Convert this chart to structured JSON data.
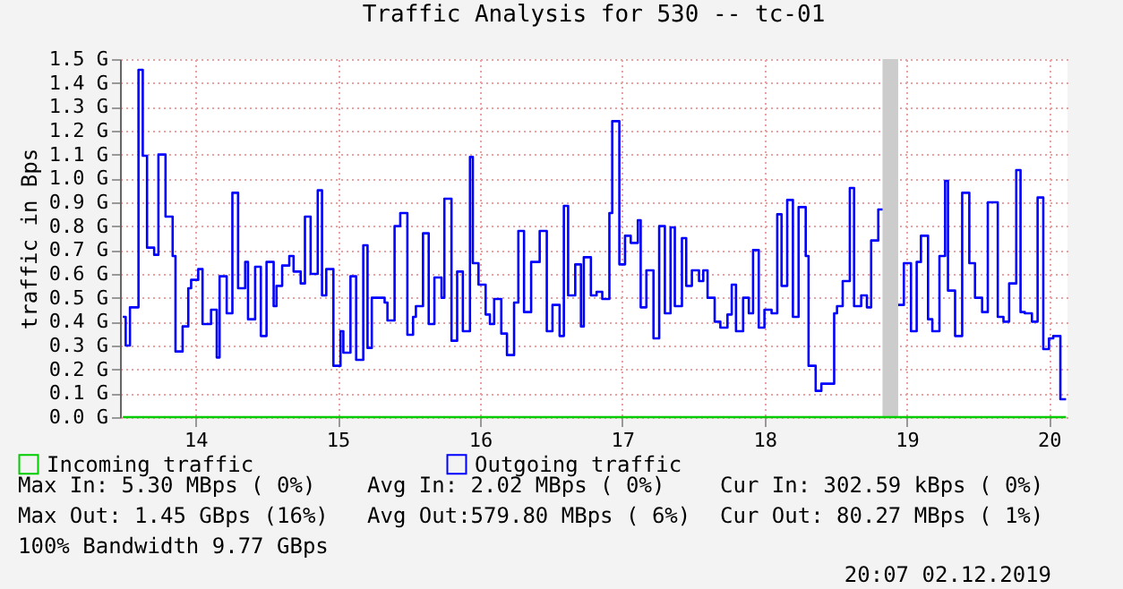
{
  "chart_data": {
    "type": "step",
    "title": "Traffic Analysis for 530 -- tc-01",
    "ylabel": "traffic in Bps",
    "xlim": [
      13.47,
      20.13
    ],
    "xticks": [
      14,
      15,
      16,
      17,
      18,
      19,
      20
    ],
    "ylim": [
      0,
      1.5
    ],
    "yticks": [
      {
        "value": 0,
        "label": "0.0 G"
      },
      {
        "value": 0.1,
        "label": "0.1 G"
      },
      {
        "value": 0.2,
        "label": "0.2 G"
      },
      {
        "value": 0.3,
        "label": "0.3 G"
      },
      {
        "value": 0.4,
        "label": "0.4 G"
      },
      {
        "value": 0.5,
        "label": "0.5 G"
      },
      {
        "value": 0.6,
        "label": "0.6 G"
      },
      {
        "value": 0.7,
        "label": "0.7 G"
      },
      {
        "value": 0.8,
        "label": "0.8 G"
      },
      {
        "value": 0.9,
        "label": "0.9 G"
      },
      {
        "value": 1.0,
        "label": "1.0 G"
      },
      {
        "value": 1.1,
        "label": "1.1 G"
      },
      {
        "value": 1.2,
        "label": "1.2 G"
      },
      {
        "value": 1.3,
        "label": "1.3 G"
      },
      {
        "value": 1.4,
        "label": "1.4 G"
      },
      {
        "value": 1.5,
        "label": "1.5 G"
      }
    ],
    "grid": true,
    "legend": "bottom",
    "line_style": "solid",
    "bands": [
      {
        "axis": "x",
        "from": 18.83,
        "to": 18.94,
        "color": "#cccccc"
      }
    ],
    "series": [
      {
        "name": "Incoming traffic",
        "color": "#00cc00",
        "x": [
          13.49,
          20.12
        ],
        "values": [
          0,
          0
        ]
      },
      {
        "name": "Outgoing traffic",
        "color": "#0000ff",
        "x": [
          13.49,
          13.51,
          13.54,
          13.6,
          13.63,
          13.66,
          13.71,
          13.74,
          13.79,
          13.84,
          13.86,
          13.91,
          13.95,
          13.97,
          14.02,
          14.05,
          14.11,
          14.15,
          14.17,
          14.22,
          14.26,
          14.3,
          14.35,
          14.37,
          14.42,
          14.46,
          14.5,
          14.55,
          14.57,
          14.61,
          14.66,
          14.69,
          14.74,
          14.77,
          14.81,
          14.86,
          14.89,
          14.92,
          14.97,
          15.02,
          15.04,
          15.09,
          15.13,
          15.18,
          15.21,
          15.24,
          15.33,
          15.35,
          15.4,
          15.44,
          15.49,
          15.53,
          15.55,
          15.6,
          15.64,
          15.68,
          15.73,
          15.75,
          15.8,
          15.84,
          15.88,
          15.93,
          15.95,
          15.99,
          16.04,
          16.07,
          16.1,
          16.15,
          16.19,
          16.24,
          16.27,
          16.31,
          16.36,
          16.42,
          16.47,
          16.51,
          16.56,
          16.59,
          16.62,
          16.67,
          16.71,
          16.73,
          16.78,
          16.82,
          16.86,
          16.91,
          16.93,
          16.98,
          17.02,
          17.06,
          17.11,
          17.13,
          17.17,
          17.22,
          17.26,
          17.3,
          17.34,
          17.37,
          17.42,
          17.45,
          17.49,
          17.54,
          17.57,
          17.6,
          17.65,
          17.69,
          17.74,
          17.77,
          17.8,
          17.85,
          17.89,
          17.92,
          17.96,
          18.0,
          18.05,
          18.09,
          18.12,
          18.16,
          18.2,
          18.24,
          18.29,
          18.31,
          18.36,
          18.4,
          18.49,
          18.51,
          18.55,
          18.6,
          18.63,
          18.68,
          18.72,
          18.75,
          18.8,
          18.83,
          18.84,
          18.94,
          18.98,
          19.03,
          19.07,
          19.1,
          19.15,
          19.18,
          19.23,
          19.27,
          19.29,
          19.34,
          19.39,
          19.44,
          19.48,
          19.53,
          19.57,
          19.64,
          19.68,
          19.72,
          19.77,
          19.8,
          19.83,
          19.88,
          19.92,
          19.96,
          20.0,
          20.03,
          20.08,
          20.12
        ],
        "values": [
          0.42,
          0.3,
          0.46,
          1.455,
          1.095,
          0.71,
          0.68,
          1.1,
          0.84,
          0.675,
          0.275,
          0.38,
          0.54,
          0.575,
          0.62,
          0.39,
          0.45,
          0.25,
          0.59,
          0.435,
          0.94,
          0.54,
          0.65,
          0.41,
          0.63,
          0.34,
          0.65,
          0.465,
          0.55,
          0.635,
          0.675,
          0.61,
          0.56,
          0.84,
          0.6,
          0.95,
          0.51,
          0.62,
          0.215,
          0.36,
          0.27,
          0.59,
          0.24,
          0.72,
          0.29,
          0.5,
          0.48,
          0.405,
          0.8,
          0.855,
          0.345,
          0.42,
          0.465,
          0.77,
          0.39,
          0.585,
          0.5,
          0.915,
          0.32,
          0.61,
          0.36,
          1.09,
          0.645,
          0.555,
          0.43,
          0.39,
          0.495,
          0.35,
          0.26,
          0.48,
          0.78,
          0.44,
          0.65,
          0.78,
          0.36,
          0.47,
          0.34,
          0.885,
          0.51,
          0.64,
          0.38,
          0.67,
          0.51,
          0.525,
          0.495,
          0.855,
          1.24,
          0.64,
          0.76,
          0.73,
          0.825,
          0.46,
          0.615,
          0.33,
          0.8,
          0.435,
          0.795,
          0.465,
          0.75,
          0.55,
          0.615,
          0.57,
          0.615,
          0.5,
          0.4,
          0.375,
          0.43,
          0.555,
          0.36,
          0.5,
          0.435,
          0.7,
          0.375,
          0.45,
          0.435,
          0.85,
          0.55,
          0.91,
          0.42,
          0.88,
          0.675,
          0.215,
          0.11,
          0.14,
          0.435,
          0.465,
          0.57,
          0.96,
          0.465,
          0.51,
          0.46,
          0.74,
          0.87,
          0.87,
          null,
          0.47,
          0.645,
          0.36,
          0.65,
          0.76,
          0.41,
          0.36,
          0.675,
          0.99,
          0.53,
          0.34,
          0.94,
          0.645,
          0.5,
          0.44,
          0.9,
          0.42,
          0.4,
          0.56,
          1.035,
          0.44,
          0.435,
          0.4,
          0.92,
          0.285,
          0.33,
          0.34,
          0.075,
          0.075
        ]
      }
    ],
    "annotations": [
      "Max In:   5.30 MBps ( 0%)",
      "Avg In:   2.02 MBps ( 0%)",
      "Cur In: 302.59 kBps ( 0%)",
      "Max Out:  1.45 GBps (16%)",
      "Avg Out:579.80 MBps ( 6%)",
      "Cur Out: 80.27 MBps ( 1%)",
      "100% Bandwidth 9.77 GBps",
      "20:07 02.12.2019"
    ]
  }
}
